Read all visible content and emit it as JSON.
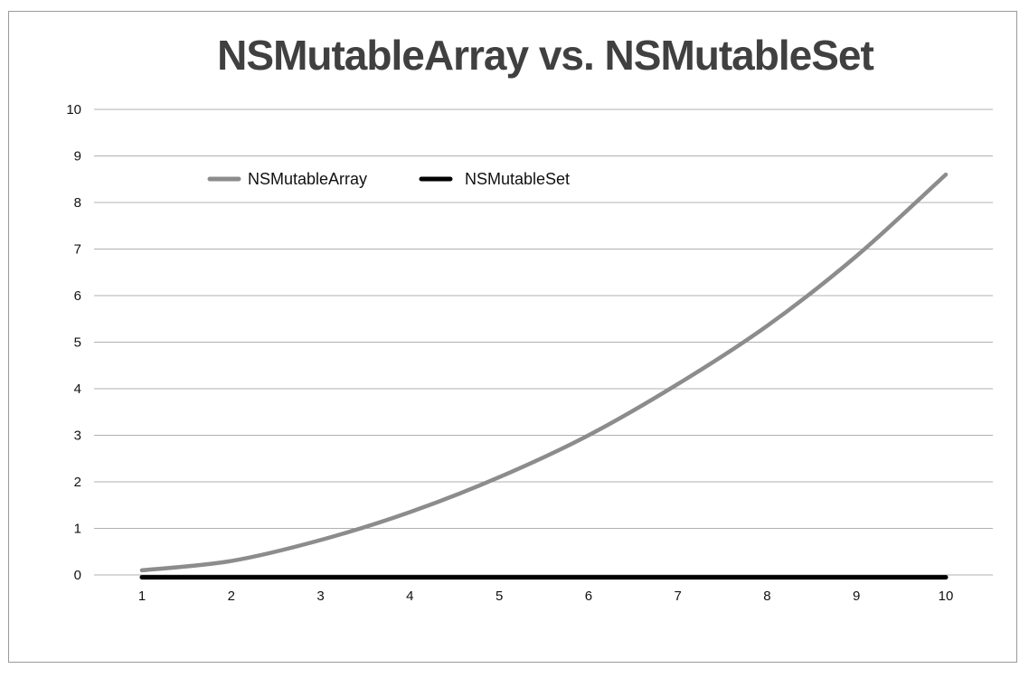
{
  "chart_data": {
    "type": "line",
    "title": "NSMutableArray vs. NSMutableSet",
    "xlabel": "",
    "ylabel": "",
    "x": [
      1,
      2,
      3,
      4,
      5,
      6,
      7,
      8,
      9,
      10
    ],
    "xlim": [
      1,
      10
    ],
    "ylim": [
      0,
      10
    ],
    "y_ticks": [
      "0",
      "1",
      "2",
      "3",
      "4",
      "5",
      "6",
      "7",
      "8",
      "9",
      "10"
    ],
    "x_ticks": [
      "1",
      "2",
      "3",
      "4",
      "5",
      "6",
      "7",
      "8",
      "9",
      "10"
    ],
    "grid": "horizontal",
    "legend_position": "top-left",
    "series": [
      {
        "name": "NSMutableArray",
        "color": "#8c8c8c",
        "values": [
          0.1,
          0.3,
          0.75,
          1.35,
          2.1,
          3.0,
          4.1,
          5.35,
          6.85,
          8.6
        ]
      },
      {
        "name": "NSMutableSet",
        "color": "#000000",
        "values": [
          -0.05,
          -0.05,
          -0.05,
          -0.05,
          -0.05,
          -0.05,
          -0.05,
          -0.05,
          -0.05,
          -0.05
        ]
      }
    ]
  }
}
